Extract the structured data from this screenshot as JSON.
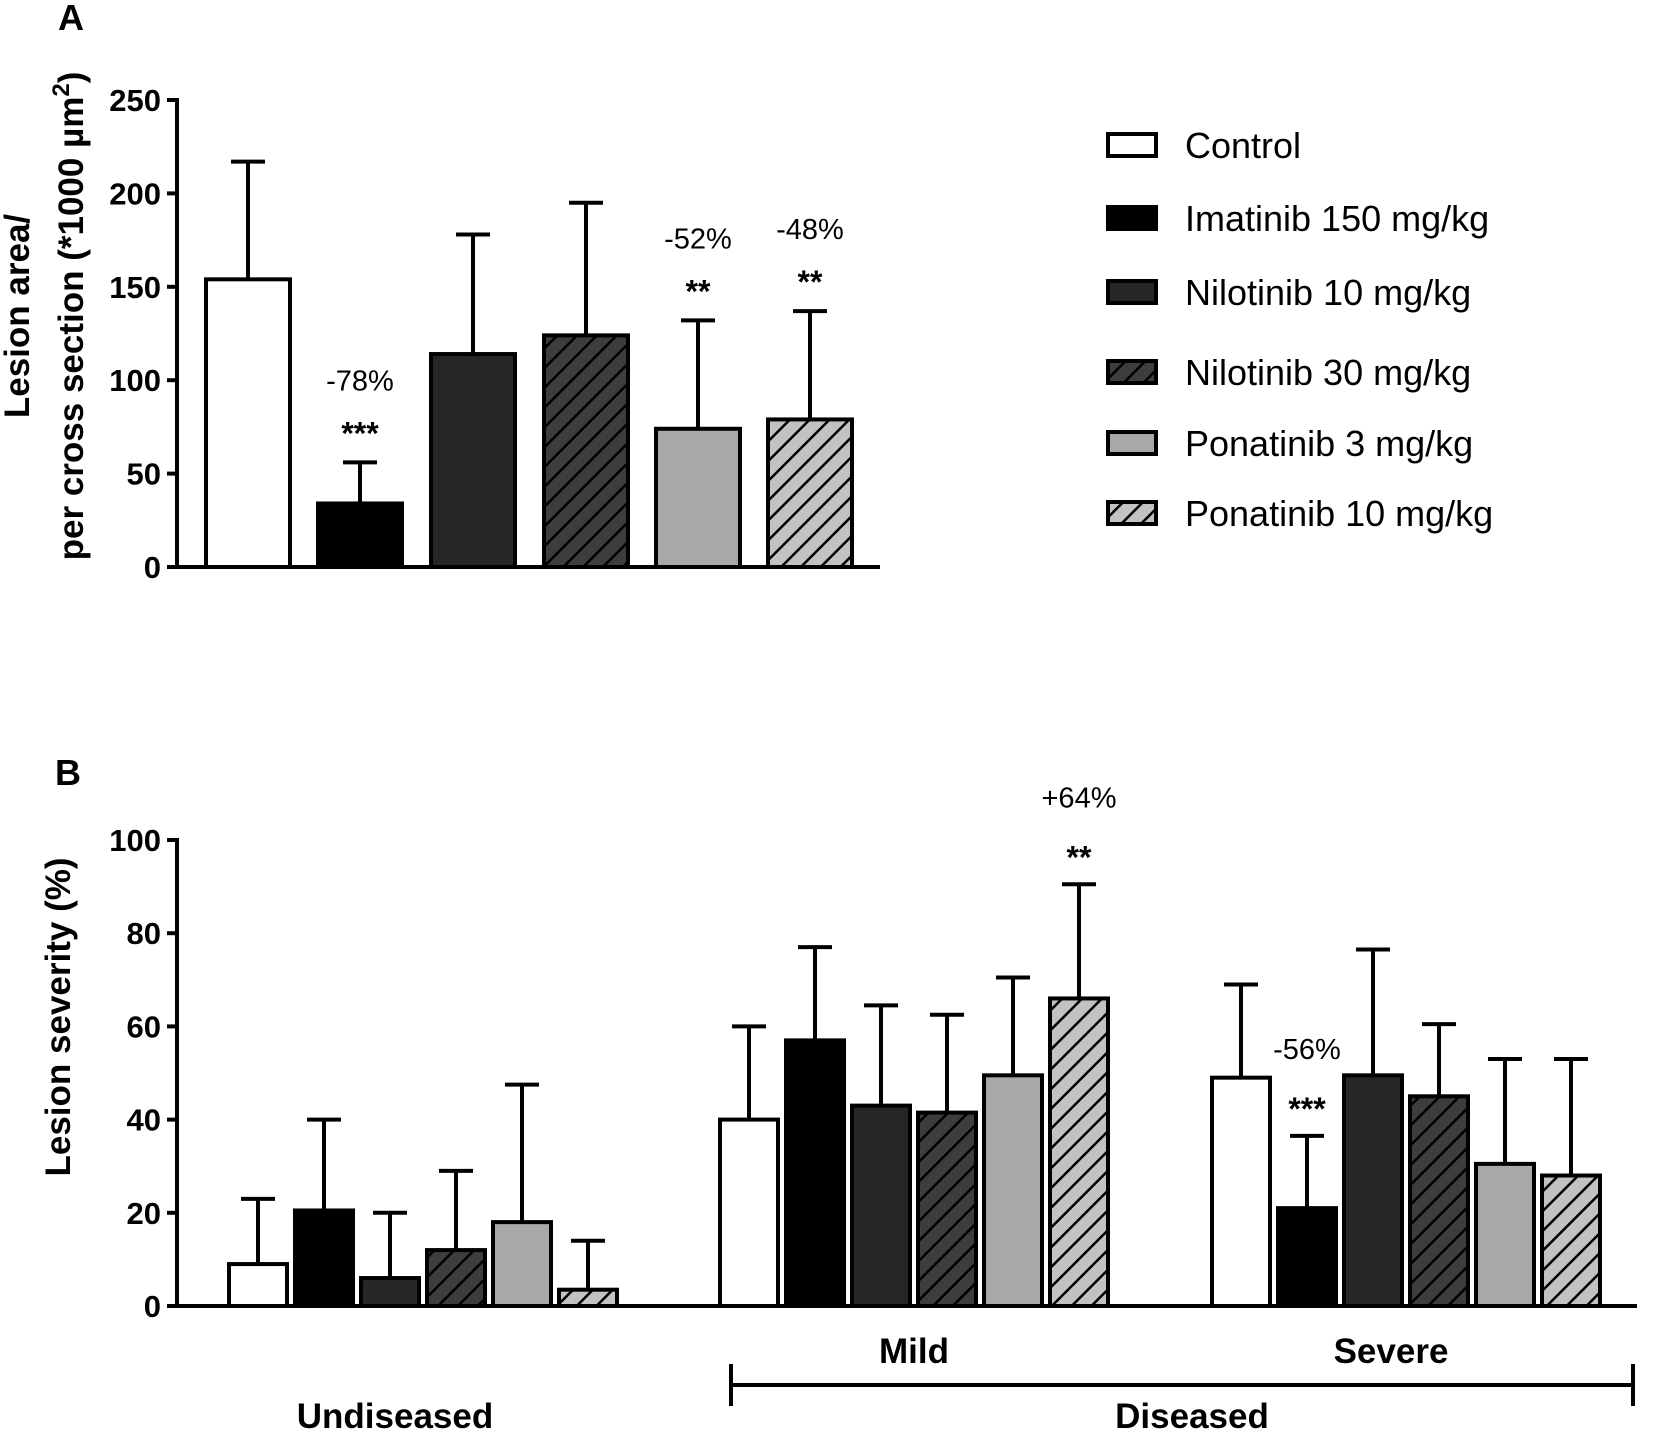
{
  "legend": [
    {
      "label": "Control",
      "style": "control"
    },
    {
      "label": "Imatinib 150 mg/kg",
      "style": "imatinib"
    },
    {
      "label": "Nilotinib 10 mg/kg",
      "style": "nilo10"
    },
    {
      "label": "Nilotinib 30 mg/kg",
      "style": "nilo30"
    },
    {
      "label": "Ponatinib 3 mg/kg",
      "style": "pona3"
    },
    {
      "label": "Ponatinib 10 mg/kg",
      "style": "pona10"
    }
  ],
  "styles": {
    "control": {
      "fill": "#ffffff",
      "hatch": false
    },
    "imatinib": {
      "fill": "#000000",
      "hatch": false
    },
    "nilo10": {
      "fill": "#262626",
      "hatch": false
    },
    "nilo30": {
      "fill": "#262626",
      "hatch": true
    },
    "pona3": {
      "fill": "#a8a8a8",
      "hatch": false
    },
    "pona10": {
      "fill": "#a8a8a8",
      "hatch": true
    }
  },
  "chart_data": [
    {
      "panel": "A",
      "type": "bar",
      "ylabel_line1": "Lesion area/",
      "ylabel_line2": "per cross section (*1000 µm",
      "ylabel_sup": "2",
      "ylabel_close": ")",
      "ylim": [
        0,
        250
      ],
      "yticks": [
        0,
        50,
        100,
        150,
        200,
        250
      ],
      "categories": [
        "Control",
        "Imatinib 150 mg/kg",
        "Nilotinib 10 mg/kg",
        "Nilotinib 30 mg/kg",
        "Ponatinib 3 mg/kg",
        "Ponatinib 10 mg/kg"
      ],
      "values": [
        154,
        34,
        114,
        124,
        74,
        79
      ],
      "errors": [
        63,
        22,
        64,
        71,
        58,
        58
      ],
      "annotations": [
        {
          "bar": 1,
          "pct": "-78%",
          "stars": "***"
        },
        {
          "bar": 4,
          "pct": "-52%",
          "stars": "**"
        },
        {
          "bar": 5,
          "pct": "-48%",
          "stars": "**"
        }
      ]
    },
    {
      "panel": "B",
      "type": "bar",
      "ylabel": "Lesion severity (%)",
      "ylim": [
        0,
        100
      ],
      "yticks": [
        0,
        20,
        40,
        60,
        80,
        100
      ],
      "groups": [
        "Undiseased",
        "Mild",
        "Severe"
      ],
      "group_bracket_label": "Diseased",
      "series": [
        {
          "name": "Control",
          "values": [
            9,
            40,
            49
          ],
          "errors": [
            14,
            20,
            20
          ]
        },
        {
          "name": "Imatinib 150 mg/kg",
          "values": [
            20.5,
            57,
            21
          ],
          "errors": [
            19.5,
            20,
            15.5
          ]
        },
        {
          "name": "Nilotinib 10 mg/kg",
          "values": [
            6,
            43,
            49.5
          ],
          "errors": [
            14,
            21.5,
            27
          ]
        },
        {
          "name": "Nilotinib 30 mg/kg",
          "values": [
            12,
            41.5,
            45
          ],
          "errors": [
            17,
            21,
            15.5
          ]
        },
        {
          "name": "Ponatinib 3 mg/kg",
          "values": [
            18,
            49.5,
            30.5
          ],
          "errors": [
            29.5,
            21,
            22.5
          ]
        },
        {
          "name": "Ponatinib 10 mg/kg",
          "values": [
            3.5,
            66,
            28
          ],
          "errors": [
            10.5,
            24.5,
            25
          ]
        }
      ],
      "annotations": [
        {
          "group": 1,
          "bar": 5,
          "pct": "+64%",
          "stars": "**"
        },
        {
          "group": 2,
          "bar": 1,
          "pct": "-56%",
          "stars": "***"
        }
      ]
    }
  ]
}
